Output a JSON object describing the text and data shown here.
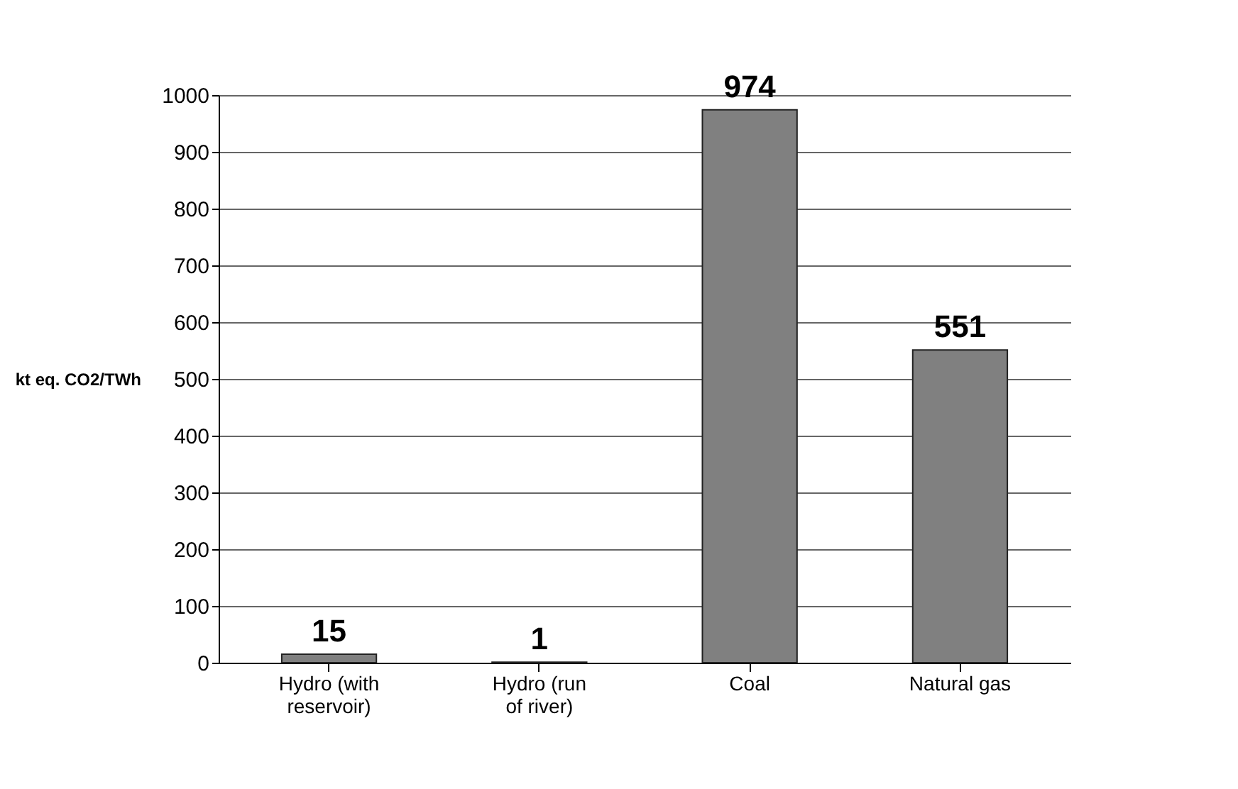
{
  "chart_data": {
    "type": "bar",
    "ylabel": "kt eq. CO2/TWh",
    "categories": [
      "Hydro (with reservoir)",
      "Hydro (run of river)",
      "Coal",
      "Natural gas"
    ],
    "values": [
      15,
      1,
      974,
      551
    ],
    "color": "#808080",
    "ylim": [
      0,
      1000
    ],
    "yticks": [
      0,
      100,
      200,
      300,
      400,
      500,
      600,
      700,
      800,
      900,
      1000
    ],
    "grid": "y",
    "data_labels": true
  }
}
